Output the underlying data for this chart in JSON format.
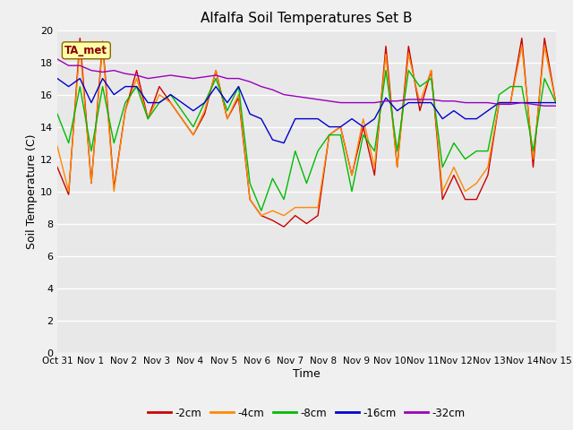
{
  "title": "Alfalfa Soil Temperatures Set B",
  "xlabel": "Time",
  "ylabel": "Soil Temperature (C)",
  "ylim": [
    0,
    20
  ],
  "yticks": [
    0,
    2,
    4,
    6,
    8,
    10,
    12,
    14,
    16,
    18,
    20
  ],
  "fig_facecolor": "#f0f0f0",
  "plot_facecolor": "#e8e8e8",
  "colors": {
    "-2cm": "#cc0000",
    "-4cm": "#ff8800",
    "-8cm": "#00bb00",
    "-16cm": "#0000cc",
    "-32cm": "#9900bb"
  },
  "ta_met_label": "TA_met",
  "x_labels": [
    "Oct 31",
    "Nov 1",
    "Nov 2",
    "Nov 3",
    "Nov 4",
    "Nov 5",
    "Nov 6",
    "Nov 7",
    "Nov 8",
    "Nov 9",
    "Nov 10",
    "Nov 11",
    "Nov 12",
    "Nov 13",
    "Nov 14",
    "Nov 15"
  ],
  "series": {
    "-2cm": [
      11.5,
      9.8,
      19.5,
      10.5,
      19.3,
      10.2,
      15.0,
      17.5,
      14.5,
      16.5,
      15.5,
      14.5,
      13.5,
      14.8,
      17.5,
      14.5,
      15.8,
      9.5,
      8.5,
      8.2,
      7.8,
      8.5,
      8.0,
      8.5,
      13.5,
      14.0,
      11.0,
      14.0,
      11.0,
      19.0,
      11.5,
      19.0,
      15.0,
      17.5,
      9.5,
      11.0,
      9.5,
      9.5,
      11.0,
      15.5,
      15.5,
      19.5,
      11.5,
      19.5,
      15.5
    ],
    "-4cm": [
      12.8,
      10.0,
      19.0,
      10.5,
      19.0,
      10.0,
      15.0,
      17.0,
      14.5,
      16.0,
      15.5,
      14.5,
      13.5,
      15.0,
      17.5,
      14.5,
      16.0,
      9.5,
      8.5,
      8.8,
      8.5,
      9.0,
      9.0,
      9.0,
      13.5,
      14.0,
      11.0,
      14.5,
      11.5,
      18.5,
      11.5,
      18.5,
      15.5,
      17.5,
      10.0,
      11.5,
      10.0,
      10.5,
      11.5,
      15.5,
      15.5,
      19.0,
      12.0,
      19.0,
      15.5
    ],
    "-8cm": [
      14.8,
      13.0,
      16.5,
      12.5,
      16.5,
      13.0,
      15.5,
      16.5,
      14.5,
      15.5,
      16.0,
      15.0,
      14.0,
      15.5,
      17.0,
      15.0,
      16.5,
      10.5,
      8.8,
      10.8,
      9.5,
      12.5,
      10.5,
      12.5,
      13.5,
      13.5,
      10.0,
      13.5,
      12.5,
      17.5,
      12.5,
      17.5,
      16.5,
      17.0,
      11.5,
      13.0,
      12.0,
      12.5,
      12.5,
      16.0,
      16.5,
      16.5,
      12.5,
      17.0,
      15.5
    ],
    "-16cm": [
      17.0,
      16.5,
      17.0,
      15.5,
      17.0,
      16.0,
      16.5,
      16.5,
      15.5,
      15.5,
      16.0,
      15.5,
      15.0,
      15.5,
      16.5,
      15.5,
      16.5,
      14.8,
      14.5,
      13.2,
      13.0,
      14.5,
      14.5,
      14.5,
      14.0,
      14.0,
      14.5,
      14.0,
      14.5,
      15.8,
      15.0,
      15.5,
      15.5,
      15.5,
      14.5,
      15.0,
      14.5,
      14.5,
      15.0,
      15.5,
      15.5,
      15.5,
      15.5,
      15.5,
      15.5
    ],
    "-32cm": [
      18.2,
      17.8,
      17.8,
      17.5,
      17.4,
      17.5,
      17.3,
      17.2,
      17.0,
      17.1,
      17.2,
      17.1,
      17.0,
      17.1,
      17.2,
      17.0,
      17.0,
      16.8,
      16.5,
      16.3,
      16.0,
      15.9,
      15.8,
      15.7,
      15.6,
      15.5,
      15.5,
      15.5,
      15.5,
      15.6,
      15.6,
      15.7,
      15.7,
      15.7,
      15.6,
      15.6,
      15.5,
      15.5,
      15.5,
      15.4,
      15.4,
      15.5,
      15.4,
      15.3,
      15.3
    ]
  }
}
